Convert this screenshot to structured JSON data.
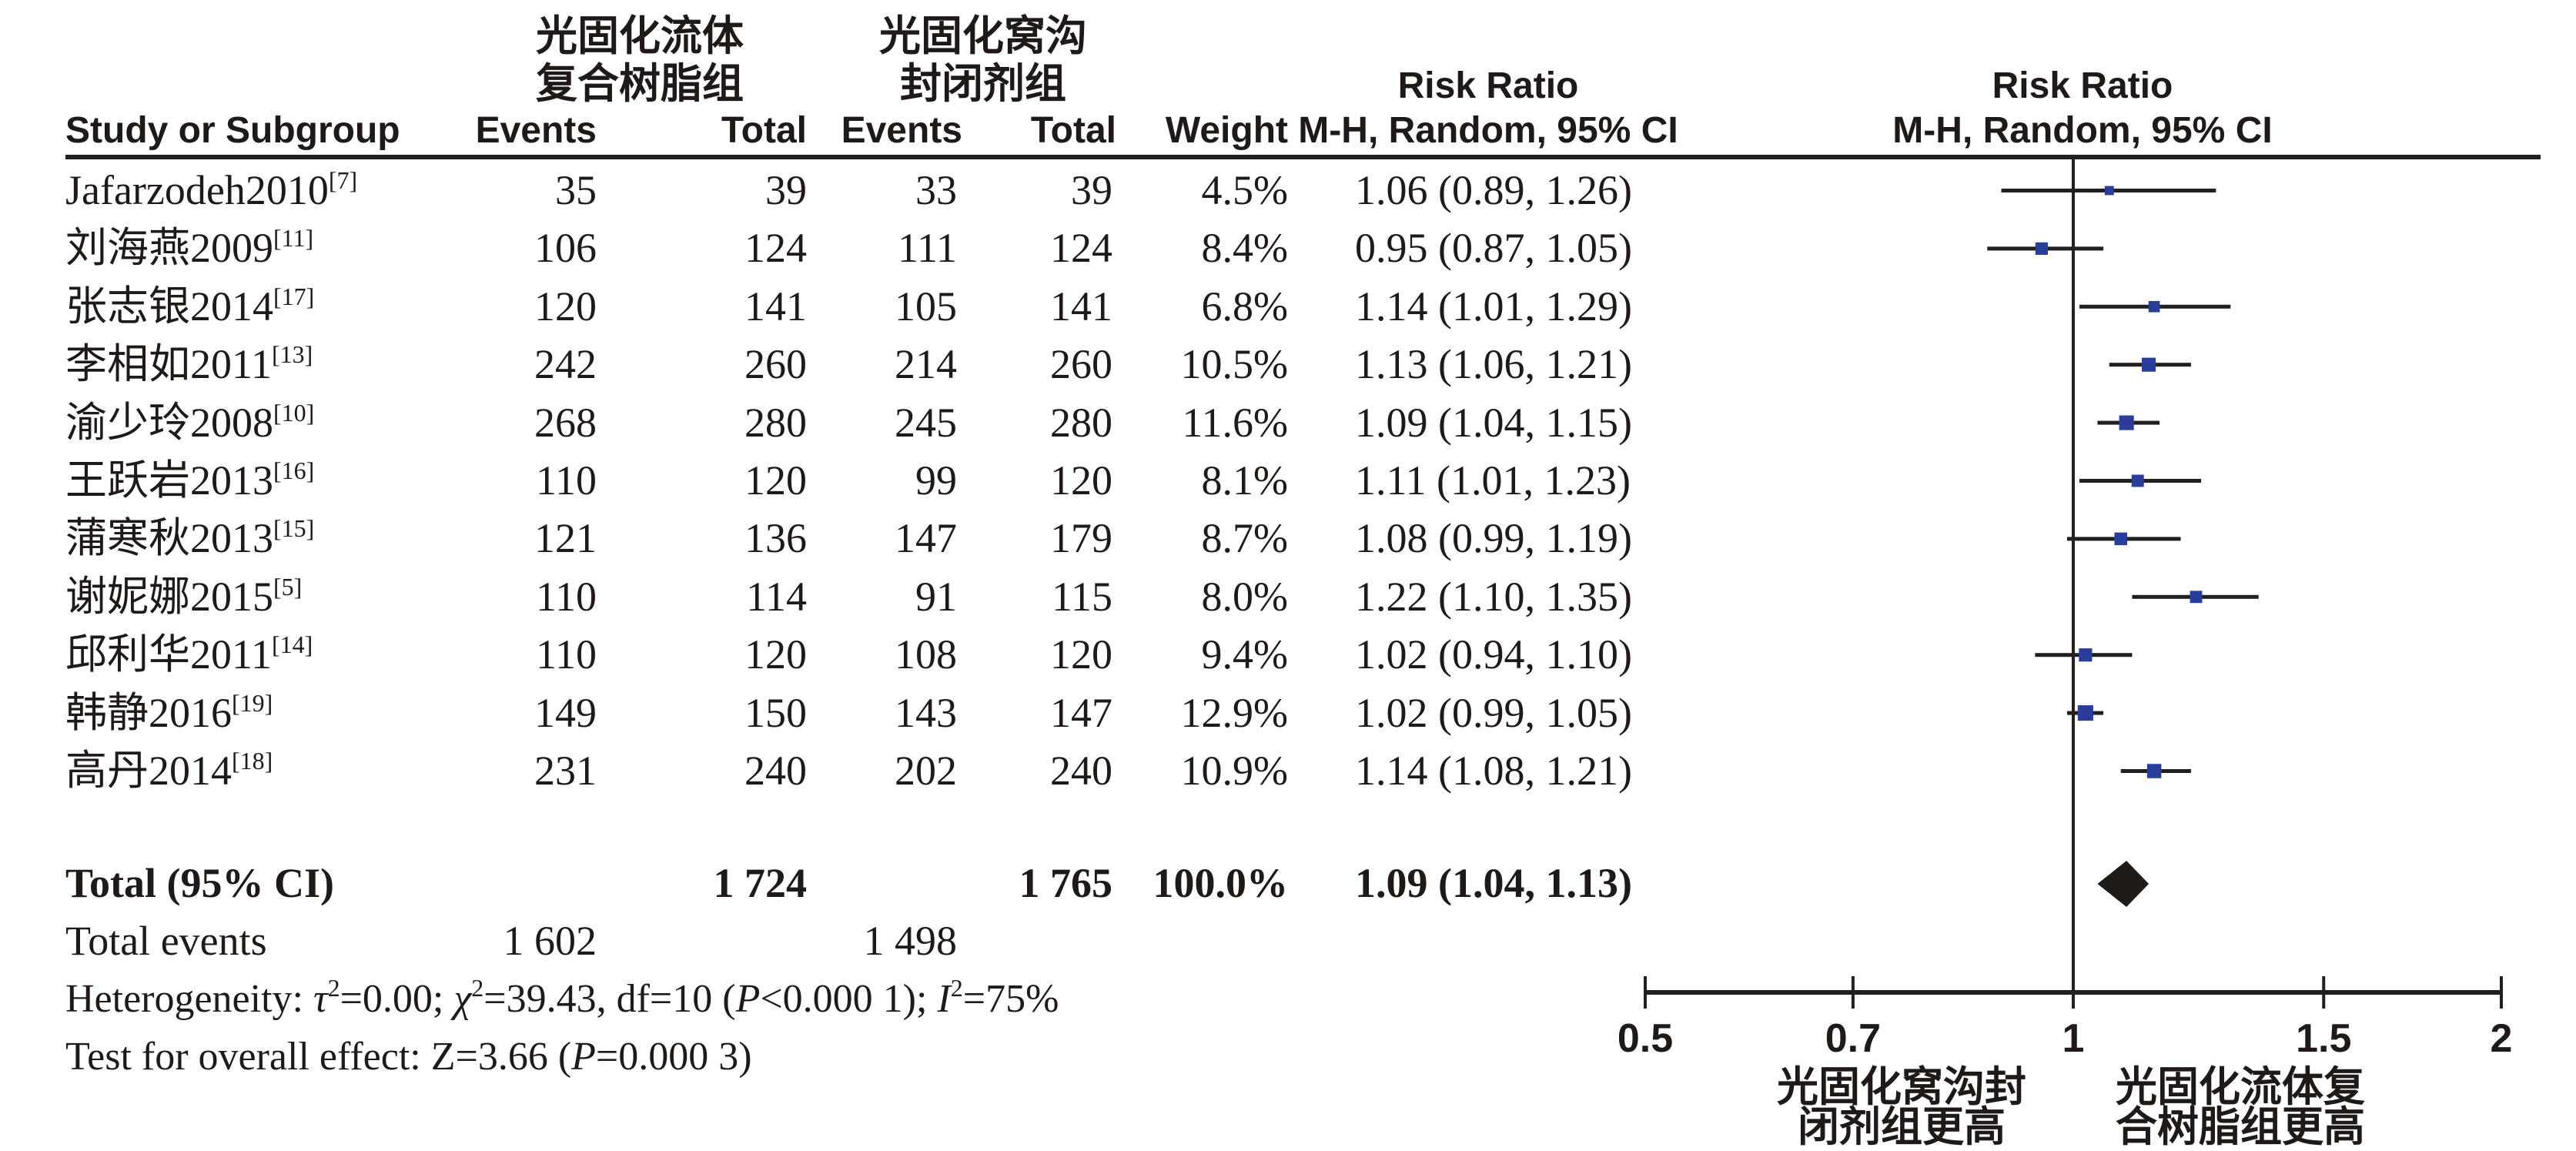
{
  "colors": {
    "text": "#1f1a17",
    "line": "#231f20",
    "marker_blue": "#2b3d9b",
    "diamond_black": "#1f1a17",
    "background": "#ffffff"
  },
  "header": {
    "study_col": "Study or Subgroup",
    "group1": {
      "line1": "光固化流体",
      "line2": "复合树脂组",
      "events": "Events",
      "total": "Total"
    },
    "group2": {
      "line1": "光固化窝沟",
      "line2": "封闭剂组",
      "events": "Events",
      "total": "Total"
    },
    "weight": "Weight",
    "ci_text_col": {
      "line1": "Risk Ratio",
      "line2": "M-H, Random, 95% CI"
    },
    "ci_plot_col": {
      "line1": "Risk Ratio",
      "line2": "M-H, Random, 95% CI"
    }
  },
  "studies": [
    {
      "name": "Jafarzodeh2010",
      "ref": "[7]",
      "events1": "35",
      "total1": "39",
      "events2": "33",
      "total2": "39",
      "weight": "4.5%",
      "rr_ci": "1.06 (0.89, 1.26)"
    },
    {
      "name": "刘海燕2009",
      "ref": "[11]",
      "events1": "106",
      "total1": "124",
      "events2": "111",
      "total2": "124",
      "weight": "8.4%",
      "rr_ci": "0.95 (0.87, 1.05)"
    },
    {
      "name": "张志银2014",
      "ref": "[17]",
      "events1": "120",
      "total1": "141",
      "events2": "105",
      "total2": "141",
      "weight": "6.8%",
      "rr_ci": "1.14 (1.01, 1.29)"
    },
    {
      "name": "李相如2011",
      "ref": "[13]",
      "events1": "242",
      "total1": "260",
      "events2": "214",
      "total2": "260",
      "weight": "10.5%",
      "rr_ci": "1.13 (1.06, 1.21)"
    },
    {
      "name": "渝少玲2008",
      "ref": "[10]",
      "events1": "268",
      "total1": "280",
      "events2": "245",
      "total2": "280",
      "weight": "11.6%",
      "rr_ci": "1.09 (1.04, 1.15)"
    },
    {
      "name": "王跃岩2013",
      "ref": "[16]",
      "events1": "110",
      "total1": "120",
      "events2": "99",
      "total2": "120",
      "weight": "8.1%",
      "rr_ci": "1.11 (1.01, 1.23)"
    },
    {
      "name": "蒲寒秋2013",
      "ref": "[15]",
      "events1": "121",
      "total1": "136",
      "events2": "147",
      "total2": "179",
      "weight": "8.7%",
      "rr_ci": "1.08 (0.99, 1.19)"
    },
    {
      "name": "谢妮娜2015",
      "ref": "[5]",
      "events1": "110",
      "total1": "114",
      "events2": "91",
      "total2": "115",
      "weight": "8.0%",
      "rr_ci": "1.22 (1.10, 1.35)"
    },
    {
      "name": "邱利华2011",
      "ref": "[14]",
      "events1": "110",
      "total1": "120",
      "events2": "108",
      "total2": "120",
      "weight": "9.4%",
      "rr_ci": "1.02 (0.94, 1.10)"
    },
    {
      "name": "韩静2016",
      "ref": "[19]",
      "events1": "149",
      "total1": "150",
      "events2": "143",
      "total2": "147",
      "weight": "12.9%",
      "rr_ci": "1.02 (0.99, 1.05)"
    },
    {
      "name": "高丹2014",
      "ref": "[18]",
      "events1": "231",
      "total1": "240",
      "events2": "202",
      "total2": "240",
      "weight": "10.9%",
      "rr_ci": "1.14 (1.08, 1.21)"
    }
  ],
  "total_row": {
    "label": "Total (95% CI)",
    "total1": "1 724",
    "total2": "1 765",
    "weight": "100.0%",
    "rr_ci": "1.09 (1.04, 1.13)"
  },
  "total_events": {
    "label": "Total events",
    "events1": "1 602",
    "events2": "1 498"
  },
  "heterogeneity": {
    "segments": [
      {
        "text": "Heterogeneity: "
      },
      {
        "text": "τ",
        "italic": true
      },
      {
        "text": "2",
        "sup": true
      },
      {
        "text": "=0.00; "
      },
      {
        "text": "χ",
        "italic": true
      },
      {
        "text": "2",
        "sup": true
      },
      {
        "text": "=39.43, df=10 ("
      },
      {
        "text": "P",
        "italic": true
      },
      {
        "text": "<0.000 1); "
      },
      {
        "text": "I",
        "italic": true
      },
      {
        "text": "2",
        "sup": true
      },
      {
        "text": "=75%"
      }
    ]
  },
  "overall_test": {
    "segments": [
      {
        "text": "Test for overall effect: Z=3.66 ("
      },
      {
        "text": "P",
        "italic": true
      },
      {
        "text": "=0.000 3)"
      }
    ]
  },
  "chart_data": {
    "type": "forest",
    "effect_measure": "Risk Ratio",
    "method": "M-H, Random, 95% CI",
    "x_scale": "log",
    "xlim": [
      0.5,
      2
    ],
    "x_tick_values": [
      0.5,
      0.7,
      1,
      1.5,
      2
    ],
    "x_tick_labels": [
      "0.5",
      "0.7",
      "1",
      "1.5",
      "2"
    ],
    "null_line": 1,
    "rows": [
      {
        "label": "Jafarzodeh2010",
        "rr": 1.06,
        "low": 0.89,
        "high": 1.26,
        "weight_pct": 4.5
      },
      {
        "label": "刘海燕2009",
        "rr": 0.95,
        "low": 0.87,
        "high": 1.05,
        "weight_pct": 8.4
      },
      {
        "label": "张志银2014",
        "rr": 1.14,
        "low": 1.01,
        "high": 1.29,
        "weight_pct": 6.8
      },
      {
        "label": "李相如2011",
        "rr": 1.13,
        "low": 1.06,
        "high": 1.21,
        "weight_pct": 10.5
      },
      {
        "label": "渝少玲2008",
        "rr": 1.09,
        "low": 1.04,
        "high": 1.15,
        "weight_pct": 11.6
      },
      {
        "label": "王跃岩2013",
        "rr": 1.11,
        "low": 1.01,
        "high": 1.23,
        "weight_pct": 8.1
      },
      {
        "label": "蒲寒秋2013",
        "rr": 1.08,
        "low": 0.99,
        "high": 1.19,
        "weight_pct": 8.7
      },
      {
        "label": "谢妮娜2015",
        "rr": 1.22,
        "low": 1.1,
        "high": 1.35,
        "weight_pct": 8.0
      },
      {
        "label": "邱利华2011",
        "rr": 1.02,
        "low": 0.94,
        "high": 1.1,
        "weight_pct": 9.4
      },
      {
        "label": "韩静2016",
        "rr": 1.02,
        "low": 0.99,
        "high": 1.05,
        "weight_pct": 12.9
      },
      {
        "label": "高丹2014",
        "rr": 1.14,
        "low": 1.08,
        "high": 1.21,
        "weight_pct": 10.9
      }
    ],
    "pooled": {
      "label": "Total (95% CI)",
      "rr": 1.09,
      "low": 1.04,
      "high": 1.13
    },
    "direction_labels": {
      "left": [
        "光固化窝沟封",
        "闭剂组更高"
      ],
      "right": [
        "光固化流体复",
        "合树脂组更高"
      ]
    }
  }
}
